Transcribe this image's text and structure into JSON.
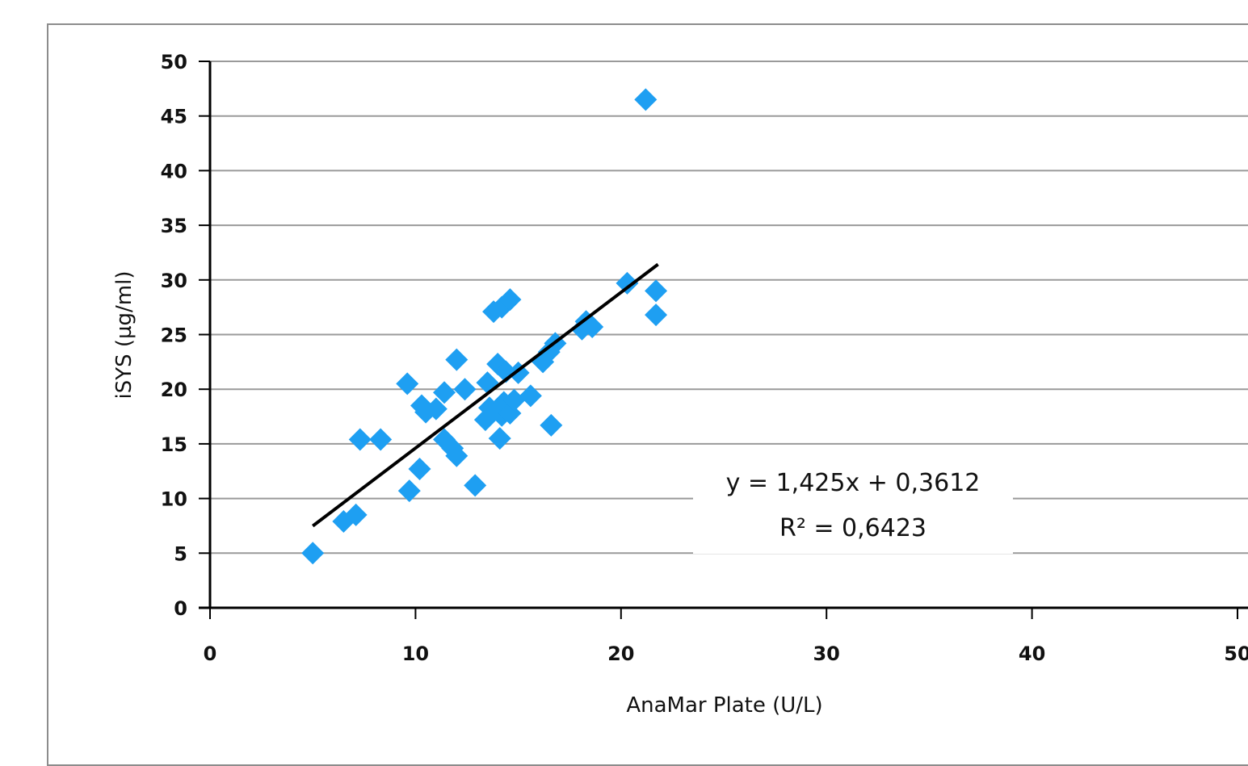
{
  "chart_data": {
    "type": "scatter",
    "xlabel": "AnaMar Plate (U/L)",
    "ylabel": "iSYS (µg/ml)",
    "xlim": [
      0,
      50
    ],
    "ylim": [
      0,
      50
    ],
    "x_ticks": [
      0,
      10,
      20,
      30,
      40,
      50
    ],
    "y_ticks": [
      0,
      5,
      10,
      15,
      20,
      25,
      30,
      35,
      40,
      45,
      50
    ],
    "x_tick_labels": [
      "0",
      "10",
      "20",
      "30",
      "40",
      "50"
    ],
    "y_tick_labels": [
      "0",
      "5",
      "10",
      "15",
      "20",
      "25",
      "30",
      "35",
      "40",
      "45",
      "50"
    ],
    "grid": "horizontal",
    "marker": "diamond",
    "colors": {
      "points": "#1e9ff2",
      "trendline": "#000000",
      "grid": "#9a9a9a",
      "axis": "#000000"
    },
    "series": [
      {
        "points": [
          [
            5.0,
            5.0
          ],
          [
            6.5,
            7.9
          ],
          [
            7.1,
            8.5
          ],
          [
            7.3,
            15.4
          ],
          [
            8.3,
            15.4
          ],
          [
            9.6,
            20.5
          ],
          [
            9.7,
            10.7
          ],
          [
            10.2,
            12.7
          ],
          [
            10.3,
            18.5
          ],
          [
            10.5,
            17.9
          ],
          [
            11.0,
            18.2
          ],
          [
            11.4,
            19.7
          ],
          [
            11.4,
            15.4
          ],
          [
            11.8,
            14.6
          ],
          [
            12.0,
            13.9
          ],
          [
            12.0,
            22.7
          ],
          [
            12.4,
            20.0
          ],
          [
            12.9,
            11.2
          ],
          [
            13.4,
            17.2
          ],
          [
            13.5,
            20.6
          ],
          [
            13.6,
            18.3
          ],
          [
            13.8,
            27.1
          ],
          [
            14.0,
            22.3
          ],
          [
            14.1,
            15.5
          ],
          [
            14.2,
            27.5
          ],
          [
            14.2,
            17.6
          ],
          [
            14.3,
            18.8
          ],
          [
            14.4,
            21.6
          ],
          [
            14.6,
            28.2
          ],
          [
            14.6,
            17.8
          ],
          [
            14.8,
            19.0
          ],
          [
            15.0,
            21.5
          ],
          [
            15.6,
            19.4
          ],
          [
            16.2,
            22.5
          ],
          [
            16.5,
            23.4
          ],
          [
            16.6,
            16.7
          ],
          [
            16.8,
            24.2
          ],
          [
            18.1,
            25.5
          ],
          [
            18.3,
            26.2
          ],
          [
            18.6,
            25.7
          ],
          [
            20.3,
            29.7
          ],
          [
            21.2,
            46.5
          ],
          [
            21.7,
            29.0
          ],
          [
            21.7,
            26.8
          ]
        ]
      }
    ],
    "trendline": {
      "slope": 1.425,
      "intercept": 0.3612,
      "x_range": [
        5.0,
        21.8
      ]
    },
    "annotations": {
      "equation": "y = 1,425x + 0,3612",
      "r2": "R² = 0,6423"
    }
  }
}
